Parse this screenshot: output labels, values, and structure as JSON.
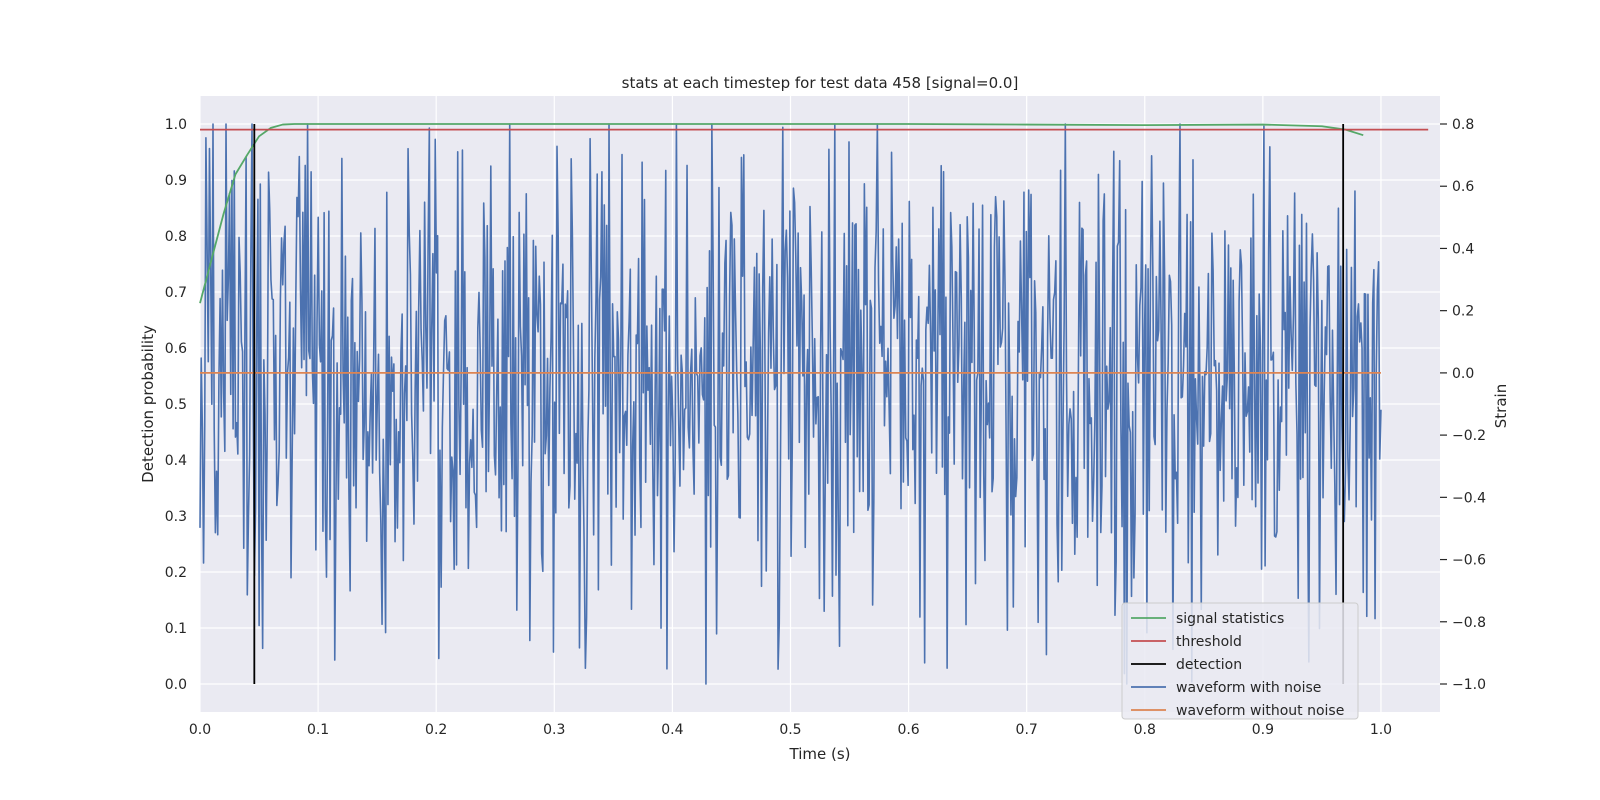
{
  "chart_data": {
    "type": "line",
    "title": "stats at each timestep for test data 458 [signal=0.0]",
    "xlabel": "Time (s)",
    "ylabel": "Detection probability",
    "y2label": "Strain",
    "xlim": [
      0.0,
      1.05
    ],
    "ylim": [
      -0.05,
      1.05
    ],
    "y2lim": [
      -1.09,
      0.89
    ],
    "xticks": [
      "0.0",
      "0.1",
      "0.2",
      "0.3",
      "0.4",
      "0.5",
      "0.6",
      "0.7",
      "0.8",
      "0.9",
      "1.0"
    ],
    "yticks": [
      "0.0",
      "0.1",
      "0.2",
      "0.3",
      "0.4",
      "0.5",
      "0.6",
      "0.7",
      "0.8",
      "0.9",
      "1.0"
    ],
    "y2ticks": [
      "−1.0",
      "−0.8",
      "−0.6",
      "−0.4",
      "−0.2",
      "0.0",
      "0.2",
      "0.4",
      "0.6",
      "0.8"
    ],
    "grid": true,
    "legend_position": "lower-right",
    "colors": {
      "background": "#eaeaf2",
      "grid": "#ffffff",
      "signal_statistics": "#55a868",
      "threshold": "#c44e52",
      "detection": "#000000",
      "waveform_with_noise": "#4c72b0",
      "waveform_without_noise": "#dd8452"
    },
    "series": [
      {
        "name": "signal statistics",
        "axis": "left",
        "x": [
          0.0,
          0.01,
          0.02,
          0.03,
          0.04,
          0.05,
          0.06,
          0.07,
          0.08,
          0.1,
          0.2,
          0.3,
          0.4,
          0.5,
          0.6,
          0.7,
          0.8,
          0.9,
          0.95,
          0.97,
          0.985
        ],
        "y": [
          0.68,
          0.76,
          0.84,
          0.91,
          0.945,
          0.978,
          0.993,
          0.999,
          1.0,
          1.0,
          1.0,
          1.0,
          1.0,
          1.0,
          1.0,
          0.999,
          0.998,
          0.999,
          0.996,
          0.99,
          0.98
        ]
      },
      {
        "name": "threshold",
        "axis": "left",
        "x": [
          0.0,
          1.04
        ],
        "y": [
          0.99,
          0.99
        ]
      },
      {
        "name": "detection",
        "axis": "left",
        "type": "vlines",
        "x": [
          0.046,
          0.968
        ],
        "y": [
          0.0,
          1.0
        ]
      },
      {
        "name": "waveform with noise",
        "axis": "right",
        "type": "noise",
        "x_range": [
          0.0,
          1.0
        ],
        "points": 1000,
        "seed": 458,
        "y_range": [
          -1.0,
          0.8
        ]
      },
      {
        "name": "waveform without noise",
        "axis": "right",
        "x": [
          0.0,
          1.0
        ],
        "y": [
          0.0,
          0.0
        ]
      }
    ]
  }
}
